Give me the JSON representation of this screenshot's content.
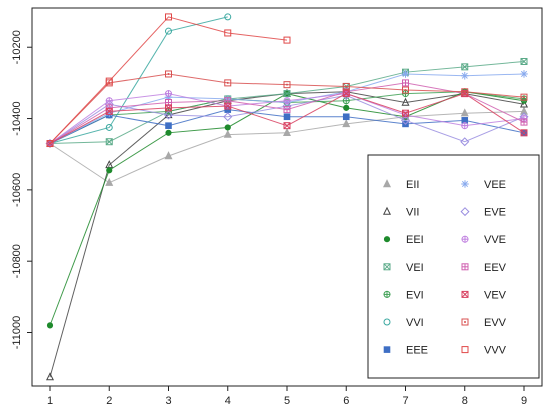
{
  "chart_data": {
    "type": "line",
    "title": "",
    "xlabel": "",
    "ylabel": "",
    "x": [
      1,
      2,
      3,
      4,
      5,
      6,
      7,
      8,
      9
    ],
    "xlim": [
      1,
      9
    ],
    "ylim": [
      -11150,
      -10090
    ],
    "x_ticks": [
      1,
      2,
      3,
      4,
      5,
      6,
      7,
      8,
      9
    ],
    "y_ticks": [
      -11000,
      -10800,
      -10600,
      -10400,
      -10200
    ],
    "grid": false,
    "legend_position": "bottom-right",
    "series": [
      {
        "name": "EII",
        "marker": "triangle-filled",
        "color": "#a8a8a8",
        "values": [
          -10470,
          -10580,
          -10505,
          -10445,
          -10440,
          -10415,
          -10395,
          -10385,
          -10380
        ]
      },
      {
        "name": "VII",
        "marker": "triangle-open",
        "color": "#444444",
        "values": [
          -11125,
          -10530,
          -10390,
          -10350,
          -10330,
          -10325,
          -10355,
          -10330,
          -10360
        ]
      },
      {
        "name": "EEI",
        "marker": "circle-filled",
        "color": "#1e8a2c",
        "values": [
          -10980,
          -10545,
          -10440,
          -10425,
          -10330,
          -10370,
          -10395,
          -10325,
          -10350
        ]
      },
      {
        "name": "VEI",
        "marker": "square-x",
        "color": "#5aaa88",
        "values": [
          -10470,
          -10465,
          -10380,
          -10345,
          -10330,
          -10310,
          -10270,
          -10255,
          -10240
        ]
      },
      {
        "name": "EVI",
        "marker": "circle-plus",
        "color": "#3fa055",
        "values": [
          -10470,
          -10390,
          -10380,
          -10345,
          -10355,
          -10350,
          -10330,
          -10325,
          -10345
        ]
      },
      {
        "name": "VVI",
        "marker": "circle-open",
        "color": "#3aa8a0",
        "values": [
          -10470,
          -10425,
          -10155,
          -10115,
          null,
          null,
          null,
          null,
          null
        ]
      },
      {
        "name": "EEE",
        "marker": "square-filled",
        "color": "#3f6fc4",
        "values": [
          -10470,
          -10390,
          -10420,
          -10375,
          -10395,
          -10395,
          -10415,
          -10405,
          -10440
        ]
      },
      {
        "name": "VEE",
        "marker": "star",
        "color": "#88aaee",
        "values": [
          -10470,
          -10385,
          -10340,
          -10345,
          -10355,
          -10325,
          -10275,
          -10280,
          -10275
        ]
      },
      {
        "name": "EVE",
        "marker": "diamond-open",
        "color": "#9a8ee0",
        "values": [
          -10470,
          -10360,
          -10390,
          -10395,
          -10365,
          -10335,
          -10405,
          -10465,
          -10395
        ]
      },
      {
        "name": "VVE",
        "marker": "circle-plus-big",
        "color": "#c080e0",
        "values": [
          -10470,
          -10350,
          -10330,
          -10365,
          -10350,
          -10330,
          -10390,
          -10420,
          -10400
        ]
      },
      {
        "name": "EEV",
        "marker": "square-plus",
        "color": "#d060b0",
        "values": [
          -10470,
          -10370,
          -10355,
          -10350,
          -10375,
          -10325,
          -10300,
          -10330,
          -10410
        ]
      },
      {
        "name": "VEV",
        "marker": "square-x-pink",
        "color": "#d84060",
        "values": [
          -10470,
          -10380,
          -10370,
          -10365,
          -10420,
          -10330,
          -10385,
          -10330,
          -10440
        ]
      },
      {
        "name": "EVV",
        "marker": "square-dot",
        "color": "#d85050",
        "values": [
          -10470,
          -10300,
          -10275,
          -10300,
          -10305,
          -10310,
          -10320,
          -10325,
          -10340
        ]
      },
      {
        "name": "VVV",
        "marker": "square-open",
        "color": "#e04848",
        "values": [
          -10470,
          -10295,
          -10115,
          -10160,
          -10180,
          null,
          null,
          null,
          null
        ]
      }
    ]
  }
}
